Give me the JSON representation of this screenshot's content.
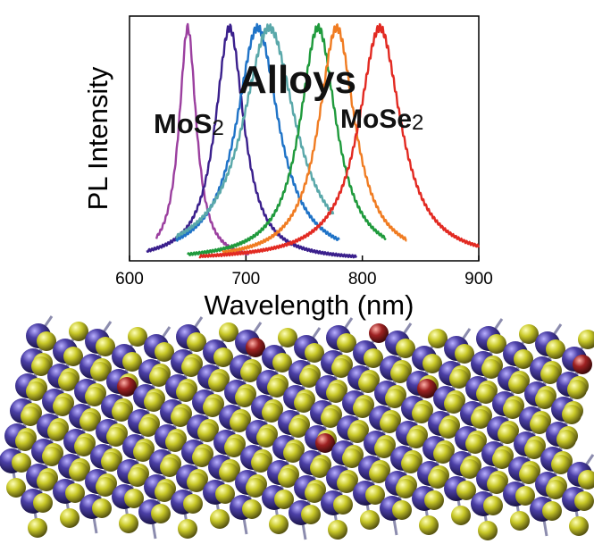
{
  "chart_data": {
    "type": "line",
    "xlabel": "Wavelength (nm)",
    "ylabel": "PL Intensity",
    "xlim": [
      600,
      900
    ],
    "ylim": [
      0,
      1.05
    ],
    "x_ticks": [
      600,
      700,
      800,
      900
    ],
    "grid": false,
    "annotations": {
      "center": "Alloys",
      "left": "MoS",
      "left_sub": "2",
      "right": "MoSe",
      "right_sub": "2"
    },
    "series": [
      {
        "color": "#9b3f9f",
        "peak": 650,
        "fwhm": 18,
        "start": 623,
        "end": 702
      },
      {
        "color": "#3a1f8c",
        "peak": 686,
        "fwhm": 30,
        "start": 615,
        "end": 795
      },
      {
        "color": "#1f73c7",
        "peak": 710,
        "fwhm": 44,
        "start": 640,
        "end": 780
      },
      {
        "color": "#5aa8aa",
        "peak": 720,
        "fwhm": 55,
        "start": 640,
        "end": 775
      },
      {
        "color": "#1f9a3c",
        "peak": 762,
        "fwhm": 38,
        "start": 650,
        "end": 820
      },
      {
        "color": "#f07c22",
        "peak": 778,
        "fwhm": 38,
        "start": 680,
        "end": 838
      },
      {
        "color": "#e22a22",
        "peak": 815,
        "fwhm": 44,
        "start": 660,
        "end": 900
      }
    ]
  },
  "illustration": {
    "colors": {
      "metal": "#3a2f86",
      "sulfur": "#c9c928",
      "selenium": "#8a1f1f"
    }
  }
}
